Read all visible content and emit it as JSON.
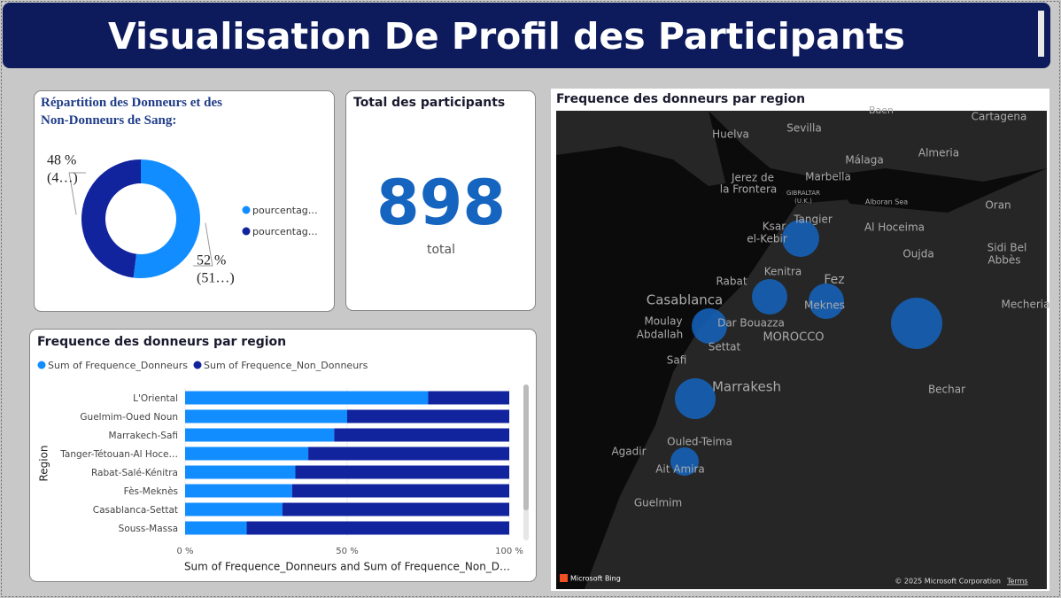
{
  "header": {
    "title": "Visualisation De Profil des Participants"
  },
  "donut_card": {
    "chart_data": {
      "type": "donut",
      "title": "Répartition des Donneurs et des Non-Donneurs de Sang:",
      "categories": [
        "pourcentag…",
        "pourcentag…"
      ],
      "values": [
        52,
        48
      ],
      "value_labels": [
        "52 %",
        "48 %"
      ],
      "detail_labels": [
        "(51…)",
        "(4…)"
      ],
      "colors": [
        "#118dff",
        "#12239e"
      ]
    }
  },
  "total_card": {
    "title": "Total des participants",
    "value": 898,
    "caption": "total"
  },
  "bar_card": {
    "chart_data": {
      "type": "bar",
      "orientation": "horizontal",
      "stacked": "percent",
      "title": "Frequence des donneurs par region",
      "x_label": "Sum of Frequence_Donneurs and Sum of Frequence_Non_D…",
      "y_label": "Region",
      "categories": [
        "L'Oriental",
        "Guelmim-Oued Noun",
        "Marrakech-Safi",
        "Tanger-Tétouan-Al Hoce…",
        "Rabat-Salé-Kénitra",
        "Fès-Meknès",
        "Casablanca-Settat",
        "Souss-Massa"
      ],
      "series": [
        {
          "name": "Sum of Frequence_Donneurs",
          "color": "#118dff",
          "values": [
            75,
            50,
            46,
            38,
            34,
            33,
            30,
            19
          ]
        },
        {
          "name": "Sum of Frequence_Non_Donneurs",
          "color": "#12239e",
          "values": [
            25,
            50,
            54,
            62,
            66,
            67,
            70,
            81
          ]
        }
      ],
      "xlim": [
        0,
        100
      ],
      "xticks": [
        {
          "value": 0,
          "label": "0 %"
        },
        {
          "value": 50,
          "label": "50 %"
        },
        {
          "value": 100,
          "label": "100 %"
        }
      ]
    }
  },
  "map_card": {
    "title": "Frequence des donneurs par region",
    "places": [
      "Baen",
      "Cartagena",
      "Huelva",
      "Sevilla",
      "Málaga",
      "Almeria",
      "Jerez de",
      "la Frontera",
      "Marbella",
      "GIBRALTAR",
      "(U.K.)",
      "Alboran Sea",
      "Tangier",
      "Ksar",
      "el-Kebir",
      "Al Hoceima",
      "Oran",
      "Oujda",
      "Sidi Bel",
      "Abbès",
      "Kenitra",
      "Rabat",
      "Fez",
      "Meknes",
      "Casablanca",
      "Moulay",
      "Abdallah",
      "Dar Bouazza",
      "MOROCCO",
      "Settat",
      "Mecheria",
      "Safi",
      "Marrakesh",
      "Bechar",
      "Ouled-Teima",
      "Agadir",
      "Ait Amira",
      "Guelmim"
    ],
    "brand": "Microsoft Bing",
    "copyright": "© 2025 Microsoft Corporation",
    "terms": "Terms"
  }
}
